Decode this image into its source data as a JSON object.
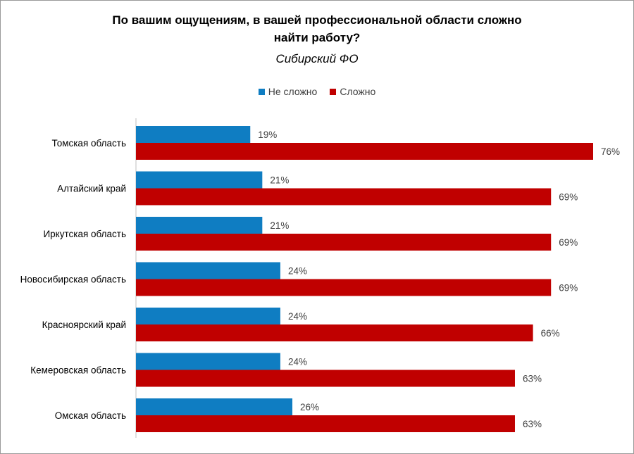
{
  "colors": {
    "not_hard": "#0f7dc2",
    "hard": "#c00000"
  },
  "chart_data": {
    "type": "bar",
    "orientation": "horizontal",
    "title": "По вашим ощущениям,  в вашей профессиональной области сложно найти работу?",
    "subtitle": "Сибирский ФО",
    "legend_position": "top",
    "categories": [
      "Томская область",
      "Алтайский край",
      "Иркутская область",
      "Новосибирская область",
      "Красноярский край",
      "Кемеровская область",
      "Омская область"
    ],
    "series": [
      {
        "name": "Не сложно",
        "values": [
          19,
          21,
          21,
          24,
          24,
          24,
          26
        ],
        "labels": [
          "19%",
          "21%",
          "21%",
          "24%",
          "24%",
          "24%",
          "26%"
        ]
      },
      {
        "name": "Сложно",
        "values": [
          76,
          69,
          69,
          69,
          66,
          63,
          63
        ],
        "labels": [
          "76%",
          "69%",
          "69%",
          "69%",
          "66%",
          "63%",
          "63%"
        ]
      }
    ],
    "xlim": [
      0,
      76
    ],
    "grid": false
  }
}
